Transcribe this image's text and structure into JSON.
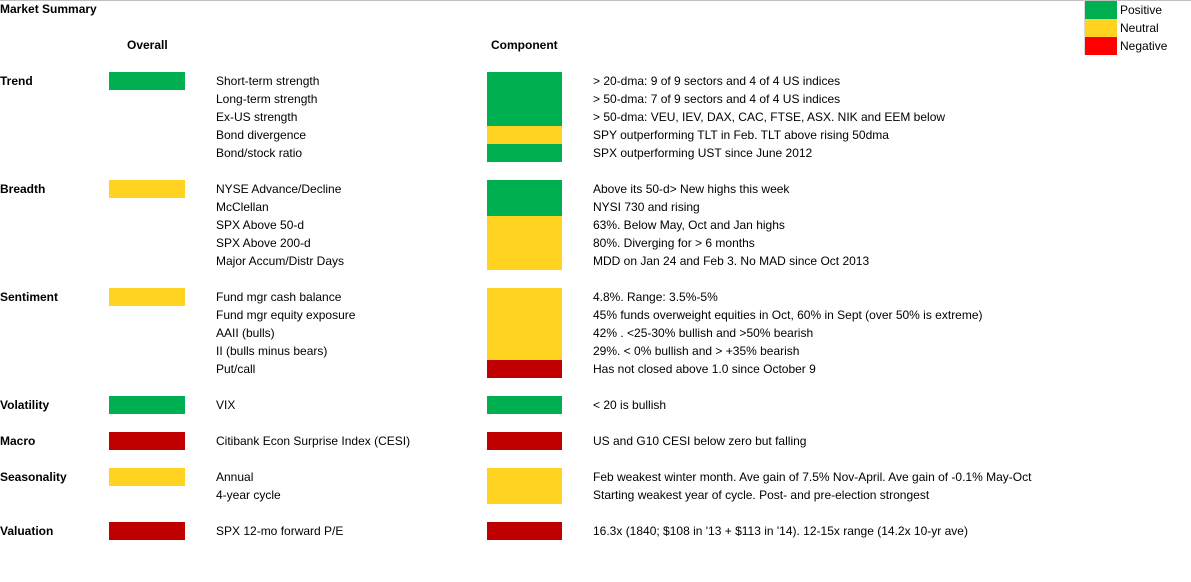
{
  "title": "Market Summary",
  "headers": {
    "overall": "Overall",
    "component": "Component"
  },
  "colors": {
    "positive": "#00b050",
    "neutral": "#ffd320",
    "negative": "#c00000",
    "legend_negative": "#ff0000"
  },
  "legend": [
    {
      "label": "Positive",
      "status": "positive"
    },
    {
      "label": "Neutral",
      "status": "neutral"
    },
    {
      "label": "Negative",
      "status": "negative"
    }
  ],
  "sections": [
    {
      "category": "Trend",
      "overall": "positive",
      "rows": [
        {
          "indicator": "Short-term strength",
          "status": "positive",
          "note": "> 20-dma: 9 of 9 sectors and 4 of 4 US indices"
        },
        {
          "indicator": "Long-term strength",
          "status": "positive",
          "note": "> 50-dma: 7 of 9 sectors and 4 of 4 US indices"
        },
        {
          "indicator": "Ex-US strength",
          "status": "positive",
          "note": "> 50-dma: VEU, IEV, DAX, CAC, FTSE, ASX. NIK and EEM below"
        },
        {
          "indicator": "Bond divergence",
          "status": "neutral",
          "note": "SPY outperforming TLT in Feb. TLT above rising 50dma"
        },
        {
          "indicator": "Bond/stock ratio",
          "status": "positive",
          "note": "SPX outperforming UST since June 2012"
        }
      ]
    },
    {
      "category": "Breadth",
      "overall": "neutral",
      "rows": [
        {
          "indicator": "NYSE Advance/Decline",
          "status": "positive",
          "note": "Above its 50-d> New highs this week"
        },
        {
          "indicator": "McClellan",
          "status": "positive",
          "note": "NYSI 730 and rising"
        },
        {
          "indicator": "SPX Above 50-d",
          "status": "neutral",
          "note": "63%. Below May, Oct and Jan highs"
        },
        {
          "indicator": "SPX Above 200-d",
          "status": "neutral",
          "note": "80%. Diverging for > 6 months"
        },
        {
          "indicator": "Major Accum/Distr Days",
          "status": "neutral",
          "note": "MDD on Jan 24 and Feb 3. No MAD since Oct 2013"
        }
      ]
    },
    {
      "category": "Sentiment",
      "overall": "neutral",
      "rows": [
        {
          "indicator": "Fund mgr cash balance",
          "status": "neutral",
          "note": "4.8%. Range: 3.5%-5%"
        },
        {
          "indicator": "Fund mgr equity exposure",
          "status": "neutral",
          "note": "45% funds overweight equities in Oct, 60%  in Sept (over 50% is extreme)"
        },
        {
          "indicator": "AAII (bulls)",
          "status": "neutral",
          "note": "42% . <25-30% bullish and >50% bearish"
        },
        {
          "indicator": "II (bulls minus bears)",
          "status": "neutral",
          "note": "29%. < 0% bullish and > +35% bearish"
        },
        {
          "indicator": "Put/call",
          "status": "negative",
          "note": "Has not closed above 1.0 since October 9"
        }
      ]
    },
    {
      "category": "Volatility",
      "overall": "positive",
      "rows": [
        {
          "indicator": "VIX",
          "status": "positive",
          "note": "< 20 is bullish"
        }
      ]
    },
    {
      "category": "Macro",
      "overall": "negative",
      "rows": [
        {
          "indicator": "Citibank Econ Surprise Index (CESI)",
          "status": "negative",
          "note": "US and G10 CESI below zero but falling"
        }
      ]
    },
    {
      "category": "Seasonality",
      "overall": "neutral",
      "rows": [
        {
          "indicator": "Annual",
          "status": "neutral",
          "note": "Feb weakest winter month. Ave gain of 7.5% Nov-April. Ave gain of -0.1% May-Oct"
        },
        {
          "indicator": "4-year cycle",
          "status": "neutral",
          "note": "Starting weakest year of cycle. Post- and pre-election strongest"
        }
      ]
    },
    {
      "category": "Valuation",
      "overall": "negative",
      "rows": [
        {
          "indicator": "SPX 12-mo forward P/E",
          "status": "negative",
          "note": "16.3x (1840; $108 in '13 + $113 in '14). 12-15x range (14.2x 10-yr ave)"
        }
      ]
    }
  ]
}
